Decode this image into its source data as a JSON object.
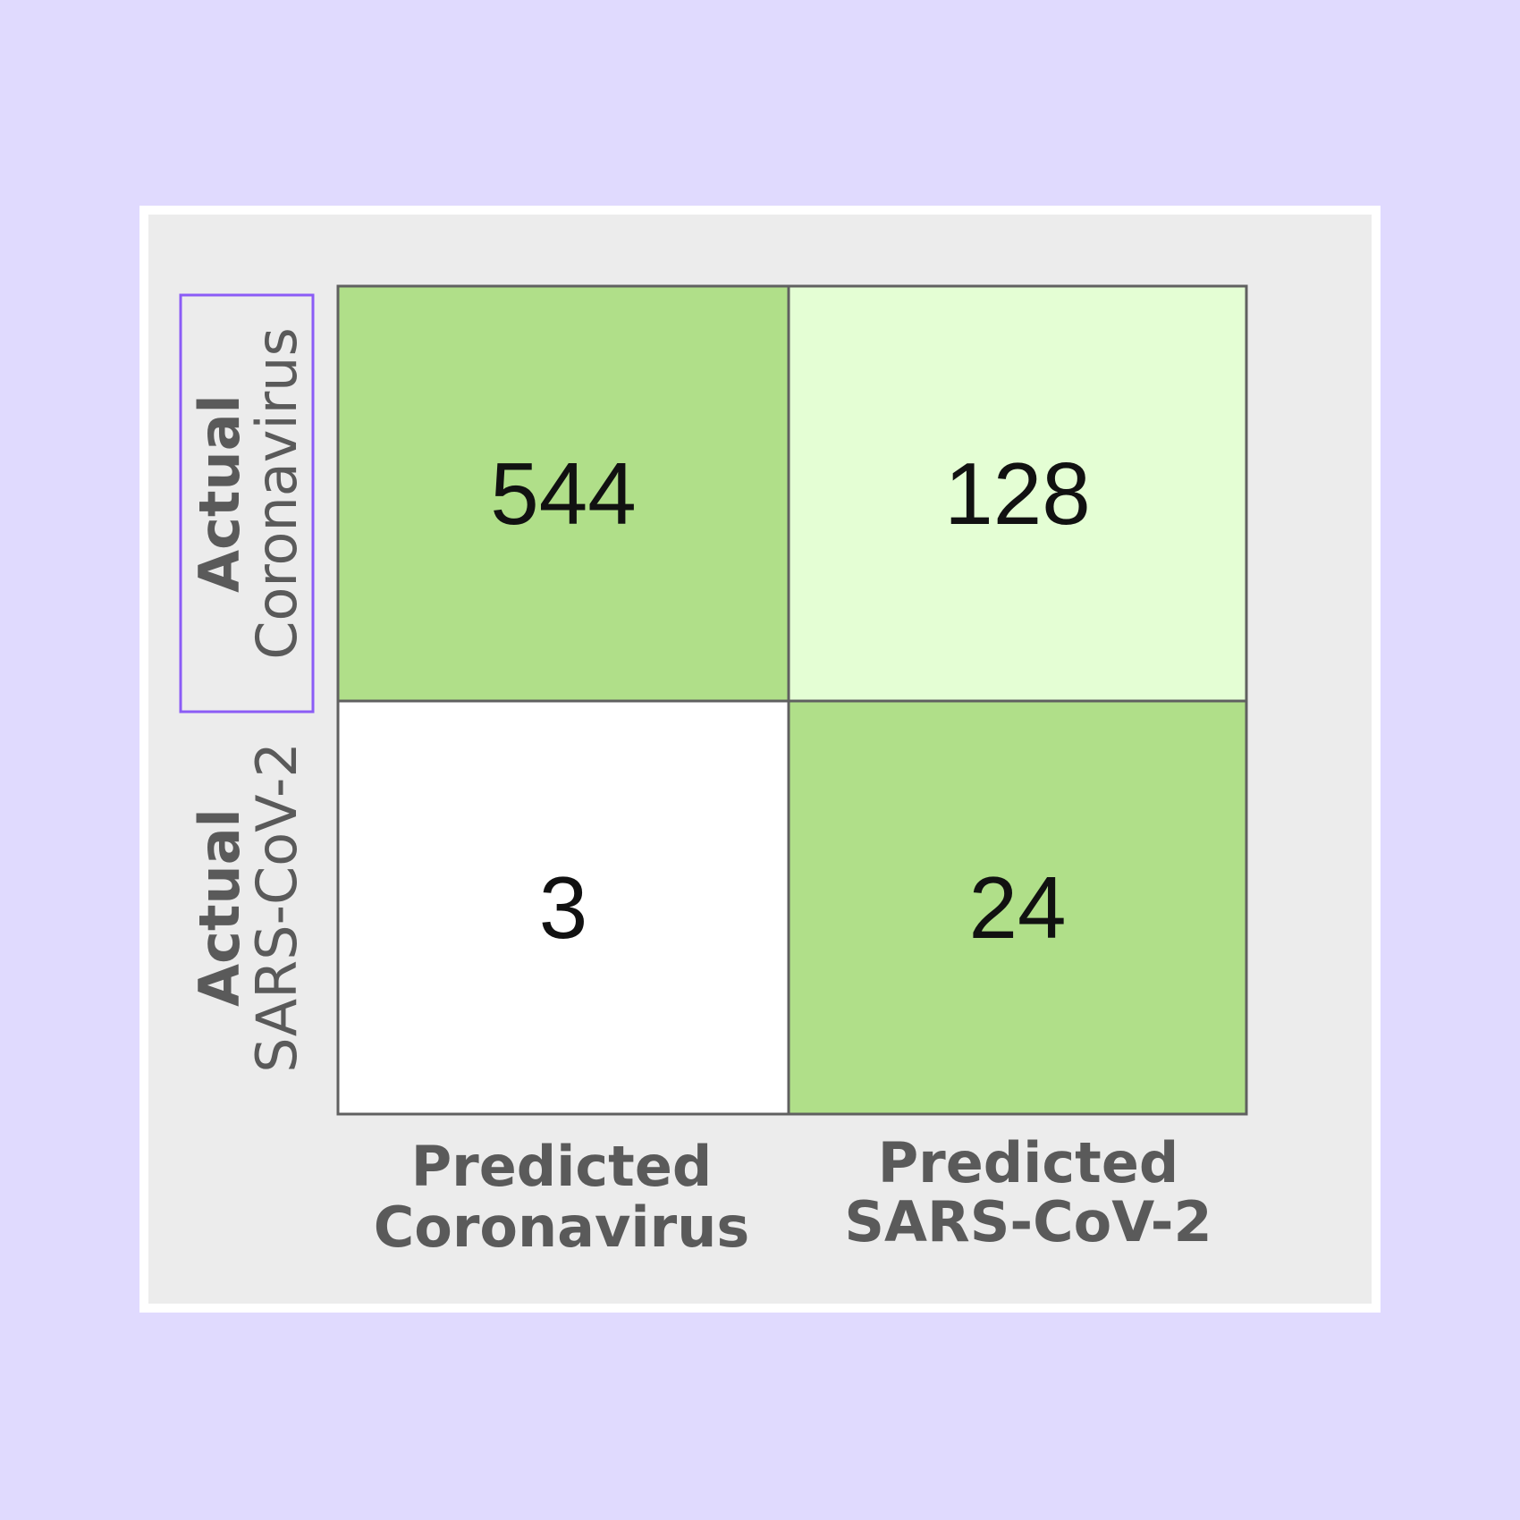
{
  "chart_data": {
    "type": "heatmap",
    "title": "",
    "row_labels": [
      [
        "Actual",
        "Coronavirus"
      ],
      [
        "Actual",
        "SARS-CoV-2"
      ]
    ],
    "col_labels": [
      [
        "Predicted",
        "Coronavirus"
      ],
      [
        "Predicted",
        "SARS-CoV-2"
      ]
    ],
    "values": [
      [
        544,
        128
      ],
      [
        3,
        24
      ]
    ],
    "cell_colors": [
      [
        "#b0df89",
        "#e4fed4"
      ],
      [
        "#ffffff",
        "#b0df89"
      ]
    ],
    "highlighted_row_label": 0,
    "highlight_color": "#8b5cf6",
    "grid_color": "#606060",
    "label_color": "#5a5a5a"
  }
}
